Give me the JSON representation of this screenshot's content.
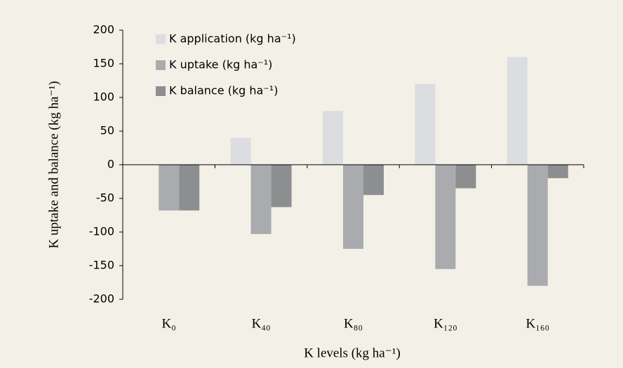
{
  "chart_data": {
    "type": "bar",
    "categories": [
      "K₀",
      "K₄₀",
      "K₈₀",
      "K₁₂₀",
      "K₁₆₀"
    ],
    "series": [
      {
        "name": "K application (kg ha⁻¹)",
        "color": "#dcdde0",
        "values": [
          0,
          40,
          80,
          120,
          160
        ]
      },
      {
        "name": "K uptake (kg ha⁻¹)",
        "color": "#a9abae",
        "values": [
          -68,
          -103,
          -125,
          -155,
          -180
        ]
      },
      {
        "name": "K balance (kg ha⁻¹)",
        "color": "#8d8e90",
        "values": [
          -68,
          -63,
          -45,
          -35,
          -20
        ]
      }
    ],
    "ylabel": "K uptake and balance (kg ha⁻¹)",
    "xlabel": "K levels (kg ha⁻¹)",
    "ylim": [
      -200,
      200
    ],
    "yticks": [
      -200,
      -150,
      -100,
      -50,
      0,
      50,
      100,
      150,
      200
    ],
    "legend": "upper left",
    "grid": false
  }
}
